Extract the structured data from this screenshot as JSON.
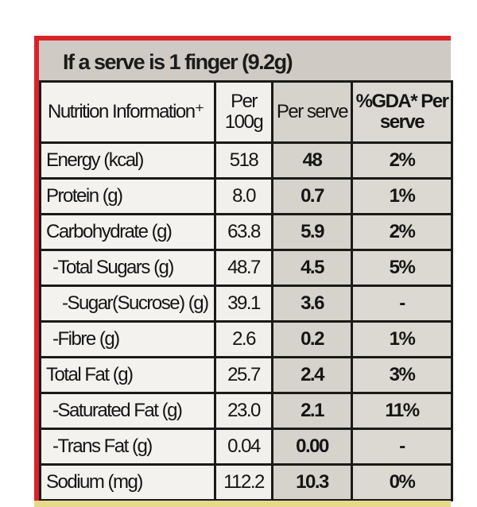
{
  "title": "If a serve is 1 finger (9.2g)",
  "table": {
    "header": [
      "Nutrition Information⁺",
      "Per 100g",
      "Per serve",
      "%GDA* Per serve"
    ],
    "rows": [
      [
        "Energy (kcal)",
        "518",
        "48",
        "2%"
      ],
      [
        "Protein (g)",
        "8.0",
        "0.7",
        "1%"
      ],
      [
        "Carbohydrate (g)",
        "63.8",
        "5.9",
        "2%"
      ],
      [
        "-Total Sugars (g)",
        "48.7",
        "4.5",
        "5%"
      ],
      [
        "-Sugar(Sucrose) (g)",
        "39.1",
        "3.6",
        "-"
      ],
      [
        "-Fibre (g)",
        "2.6",
        "0.2",
        "1%"
      ],
      [
        "Total Fat (g)",
        "25.7",
        "2.4",
        "3%"
      ],
      [
        "-Saturated Fat (g)",
        "23.0",
        "2.1",
        "11%"
      ],
      [
        "-Trans Fat (g)",
        "0.04",
        "0.00",
        "-"
      ],
      [
        "Sodium (mg)",
        "112.2",
        "10.3",
        "0%"
      ]
    ]
  }
}
